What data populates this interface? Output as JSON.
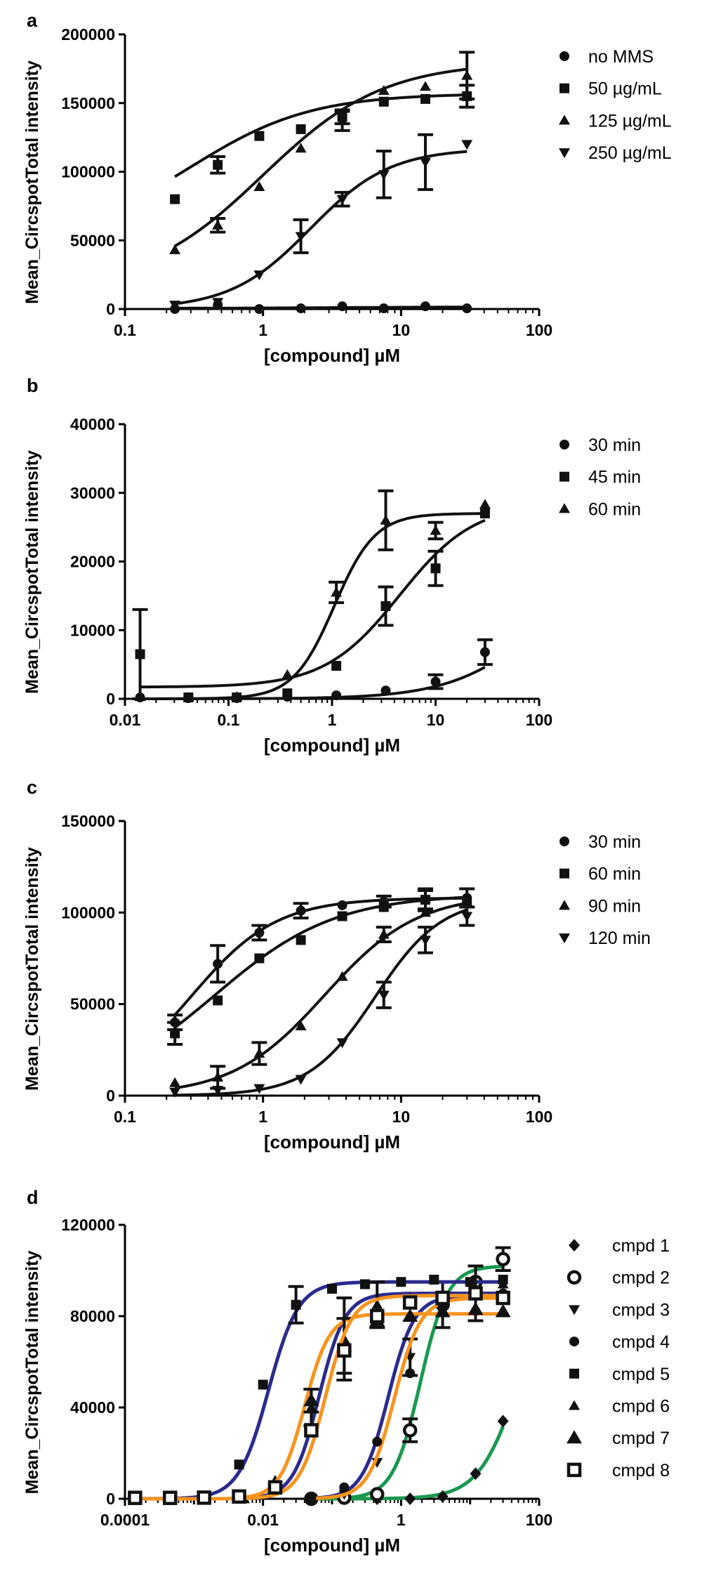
{
  "chart_data": [
    {
      "panel": "a",
      "type": "scatter",
      "xscale": "log",
      "xlabel": "[compound] µM",
      "ylabel": "Mean_CircspotTotal intensity",
      "xlim": [
        0.1,
        100
      ],
      "ylim": [
        0,
        200000
      ],
      "xticks": [
        "0.1",
        "1",
        "10",
        "100"
      ],
      "yticks": [
        "0",
        "50000",
        "100000",
        "150000",
        "200000"
      ],
      "legend_position": "top-right",
      "series": [
        {
          "name": "no MMS",
          "marker": "circle",
          "color": "#111111",
          "x": [
            0.23,
            0.47,
            0.94,
            1.88,
            3.75,
            7.5,
            15,
            30
          ],
          "y": [
            0,
            3000,
            0,
            500,
            2000,
            500,
            2000,
            500
          ],
          "err": [
            0,
            0,
            0,
            0,
            0,
            0,
            0,
            0
          ],
          "fit": {
            "bottom": 500,
            "top": 1500,
            "ec50": 3,
            "hill": 1
          }
        },
        {
          "name": "50 µg/mL",
          "marker": "square",
          "color": "#111111",
          "x": [
            0.23,
            0.47,
            0.94,
            1.88,
            3.75,
            7.5,
            15,
            30
          ],
          "y": [
            80000,
            105000,
            126000,
            131000,
            140000,
            151000,
            153000,
            155000
          ],
          "err": [
            0,
            6000,
            0,
            0,
            5000,
            0,
            0,
            8000
          ],
          "fit": {
            "bottom": 50000,
            "top": 157000,
            "ec50": 0.3,
            "hill": 1
          }
        },
        {
          "name": "125 µg/mL",
          "marker": "triangle-up",
          "color": "#111111",
          "x": [
            0.23,
            0.47,
            0.94,
            1.88,
            3.75,
            7.5,
            15,
            30
          ],
          "y": [
            43000,
            61000,
            89000,
            117000,
            137000,
            159000,
            162000,
            170000
          ],
          "err": [
            0,
            5000,
            0,
            0,
            7000,
            0,
            0,
            17000
          ],
          "fit": {
            "bottom": 15000,
            "top": 180000,
            "ec50": 1.0,
            "hill": 1
          }
        },
        {
          "name": "250 µg/mL",
          "marker": "triangle-down",
          "color": "#111111",
          "x": [
            0.23,
            0.47,
            0.94,
            1.88,
            3.75,
            7.5,
            15,
            30
          ],
          "y": [
            3000,
            5000,
            25000,
            53000,
            80000,
            98000,
            107000,
            120000
          ],
          "err": [
            0,
            0,
            0,
            12000,
            5000,
            17000,
            20000,
            0
          ],
          "fit": {
            "bottom": 0,
            "top": 117000,
            "ec50": 2.2,
            "hill": 1.5
          }
        }
      ]
    },
    {
      "panel": "b",
      "type": "scatter",
      "xscale": "log",
      "xlabel": "[compound] µM",
      "ylabel": "Mean_CircspotTotal intensity",
      "xlim": [
        0.01,
        100
      ],
      "ylim": [
        0,
        40000
      ],
      "xticks": [
        "0.01",
        "0.1",
        "1",
        "10",
        "100"
      ],
      "yticks": [
        "0",
        "10000",
        "20000",
        "30000",
        "40000"
      ],
      "legend_position": "top-right",
      "series": [
        {
          "name": "30 min",
          "marker": "circle",
          "color": "#111111",
          "x": [
            0.014,
            0.041,
            0.12,
            0.37,
            1.1,
            3.3,
            10,
            30
          ],
          "y": [
            200,
            100,
            100,
            300,
            500,
            1200,
            2500,
            6800
          ],
          "err": [
            0,
            0,
            0,
            0,
            0,
            0,
            1000,
            1800
          ],
          "fit": {
            "bottom": 0,
            "top": 20000,
            "ec50": 100,
            "hill": 1
          }
        },
        {
          "name": "45 min",
          "marker": "square",
          "color": "#111111",
          "x": [
            0.014,
            0.041,
            0.12,
            0.37,
            1.1,
            3.3,
            10,
            30
          ],
          "y": [
            6500,
            200,
            200,
            800,
            4800,
            13500,
            19000,
            27000
          ],
          "err": [
            6500,
            0,
            0,
            0,
            0,
            2800,
            2500,
            0
          ],
          "fit": {
            "bottom": 1700,
            "top": 28500,
            "ec50": 4.5,
            "hill": 1.2
          }
        },
        {
          "name": "60 min",
          "marker": "triangle-up",
          "color": "#111111",
          "x": [
            0.014,
            0.041,
            0.12,
            0.37,
            1.1,
            3.3,
            10,
            30
          ],
          "y": [
            300,
            200,
            300,
            3500,
            15500,
            26000,
            24500,
            28300
          ],
          "err": [
            0,
            0,
            0,
            0,
            1500,
            4300,
            1200,
            0
          ],
          "fit": {
            "bottom": 0,
            "top": 27000,
            "ec50": 1.05,
            "hill": 2.2
          }
        }
      ]
    },
    {
      "panel": "c",
      "type": "scatter",
      "xscale": "log",
      "xlabel": "[compound] µM",
      "ylabel": "Mean_CircspotTotal intensity",
      "xlim": [
        0.1,
        100
      ],
      "ylim": [
        0,
        150000
      ],
      "xticks": [
        "0.1",
        "1",
        "10",
        "100"
      ],
      "yticks": [
        "0",
        "50000",
        "100000",
        "150000"
      ],
      "legend_position": "top-right",
      "series": [
        {
          "name": "30 min",
          "marker": "circle",
          "color": "#111111",
          "x": [
            0.23,
            0.47,
            0.94,
            1.88,
            3.75,
            7.5,
            15,
            30
          ],
          "y": [
            40000,
            72000,
            89000,
            101000,
            104000,
            106000,
            107000,
            108000
          ],
          "err": [
            4000,
            10000,
            4000,
            4000,
            0,
            3000,
            5000,
            5000
          ],
          "fit": {
            "bottom": 0,
            "top": 108000,
            "ec50": 0.3,
            "hill": 1.4
          }
        },
        {
          "name": "60 min",
          "marker": "square",
          "color": "#111111",
          "x": [
            0.23,
            0.47,
            0.94,
            1.88,
            3.75,
            7.5,
            15,
            30
          ],
          "y": [
            34000,
            52000,
            75000,
            85000,
            98000,
            103000,
            107000,
            106000
          ],
          "err": [
            6000,
            0,
            0,
            0,
            0,
            0,
            6000,
            0
          ],
          "fit": {
            "bottom": 0,
            "top": 110000,
            "ec50": 0.45,
            "hill": 1
          }
        },
        {
          "name": "90 min",
          "marker": "triangle-up",
          "color": "#111111",
          "x": [
            0.23,
            0.47,
            0.94,
            1.88,
            3.75,
            7.5,
            15,
            30
          ],
          "y": [
            7000,
            10000,
            23000,
            38000,
            65000,
            88000,
            100000,
            106000
          ],
          "err": [
            0,
            6000,
            6000,
            0,
            0,
            4000,
            0,
            0
          ],
          "fit": {
            "bottom": 0,
            "top": 110000,
            "ec50": 2.8,
            "hill": 1.3
          }
        },
        {
          "name": "120 min",
          "marker": "triangle-down",
          "color": "#111111",
          "x": [
            0.23,
            0.47,
            0.94,
            1.88,
            3.75,
            7.5,
            15,
            30
          ],
          "y": [
            2000,
            3000,
            4000,
            9000,
            29000,
            55000,
            85000,
            98000
          ],
          "err": [
            0,
            0,
            0,
            0,
            0,
            7000,
            7000,
            5000
          ],
          "fit": {
            "bottom": 0,
            "top": 108000,
            "ec50": 6.5,
            "hill": 1.8
          }
        }
      ]
    },
    {
      "panel": "d",
      "type": "scatter",
      "xscale": "log",
      "xlabel": "[compound] µM",
      "ylabel": "Mean_CircspotTotal intensity",
      "xlim": [
        0.0001,
        100
      ],
      "ylim": [
        0,
        120000
      ],
      "xticks": [
        "0.0001",
        "0.01",
        "1",
        "100"
      ],
      "yticks": [
        "0",
        "40000",
        "80000",
        "120000"
      ],
      "legend_position": "top-right",
      "series": [
        {
          "name": "cmpd 1",
          "marker": "diamond",
          "color": "#111111",
          "fit_color": "#1a9850",
          "x": [
            0.05,
            0.15,
            0.45,
            1.35,
            4,
            12,
            30
          ],
          "y": [
            0,
            0,
            0,
            0,
            1000,
            11000,
            34000
          ],
          "err": [
            0,
            0,
            0,
            0,
            0,
            0,
            0
          ],
          "fit": {
            "bottom": 0,
            "top": 100000,
            "ec50": 50,
            "hill": 1.5
          }
        },
        {
          "name": "cmpd 2",
          "marker": "circle-open",
          "color": "#111111",
          "fit_color": "#1a9850",
          "x": [
            0.05,
            0.15,
            0.45,
            1.35,
            4,
            12,
            30
          ],
          "y": [
            0,
            500,
            2000,
            30000,
            85000,
            95000,
            105000
          ],
          "err": [
            0,
            0,
            0,
            5000,
            10000,
            0,
            5000
          ],
          "fit": {
            "bottom": 0,
            "top": 102000,
            "ec50": 1.9,
            "hill": 2.2
          }
        },
        {
          "name": "cmpd 3",
          "marker": "triangle-down",
          "color": "#111111",
          "fit_color": "#2b2b8f",
          "x": [
            0.05,
            0.15,
            0.45,
            1.35,
            4,
            12,
            30
          ],
          "y": [
            200,
            2000,
            16000,
            62000,
            85000,
            90000,
            88000
          ],
          "err": [
            0,
            0,
            0,
            8000,
            0,
            0,
            0
          ],
          "fit": {
            "bottom": 0,
            "top": 89000,
            "ec50": 0.65,
            "hill": 2.3
          }
        },
        {
          "name": "cmpd 4",
          "marker": "circle",
          "color": "#111111",
          "fit_color": "#f7941d",
          "x": [
            0.05,
            0.15,
            0.45,
            1.35,
            4,
            12,
            30
          ],
          "y": [
            300,
            5000,
            25000,
            55000,
            85000,
            90000,
            90000
          ],
          "err": [
            0,
            0,
            0,
            0,
            0,
            0,
            0
          ],
          "fit": {
            "bottom": 0,
            "top": 88000,
            "ec50": 0.8,
            "hill": 2.3
          }
        },
        {
          "name": "cmpd 5",
          "marker": "square",
          "color": "#111111",
          "fit_color": "#2b2b8f",
          "x": [
            0.00014,
            0.00045,
            0.0014,
            0.0045,
            0.01,
            0.03,
            0.1,
            0.3,
            1,
            3,
            10,
            30
          ],
          "y": [
            300,
            300,
            500,
            15000,
            50000,
            85000,
            92000,
            94000,
            95000,
            96000,
            95000,
            96000
          ],
          "err": [
            0,
            0,
            0,
            0,
            0,
            8000,
            0,
            0,
            0,
            0,
            0,
            0
          ],
          "fit": {
            "bottom": 0,
            "top": 95000,
            "ec50": 0.012,
            "hill": 2.0
          }
        },
        {
          "name": "cmpd 6",
          "marker": "triangle-up",
          "color": "#111111",
          "fit_color": "#2b2b8f",
          "x": [
            0.005,
            0.015,
            0.05,
            0.15,
            0.45,
            1.35,
            4,
            12,
            30
          ],
          "y": [
            1000,
            8000,
            40000,
            70000,
            85000,
            88000,
            90000,
            92000,
            94000
          ],
          "err": [
            0,
            0,
            8000,
            18000,
            10000,
            0,
            0,
            0,
            0
          ],
          "fit": {
            "bottom": 0,
            "top": 90000,
            "ec50": 0.065,
            "hill": 2.3
          }
        },
        {
          "name": "cmpd 7",
          "marker": "triangle-up-large",
          "color": "#111111",
          "fit_color": "#f7941d",
          "x": [
            0.005,
            0.015,
            0.05,
            0.15,
            0.45,
            1.35,
            4,
            12,
            30
          ],
          "y": [
            500,
            5000,
            43000,
            67000,
            78000,
            80000,
            82000,
            83000,
            82000
          ],
          "err": [
            0,
            0,
            5000,
            12000,
            0,
            0,
            0,
            0,
            0
          ],
          "fit": {
            "bottom": 0,
            "top": 81000,
            "ec50": 0.04,
            "hill": 2.4
          }
        },
        {
          "name": "cmpd 8",
          "marker": "square-open",
          "color": "#111111",
          "fit_color": "#f7941d",
          "x": [
            0.00014,
            0.00045,
            0.0014,
            0.0045,
            0.015,
            0.05,
            0.15,
            0.45,
            1.35,
            4,
            12,
            30
          ],
          "y": [
            400,
            400,
            500,
            1000,
            5000,
            30000,
            65000,
            80000,
            86000,
            88000,
            90000,
            88000
          ],
          "err": [
            0,
            0,
            0,
            0,
            0,
            0,
            0,
            0,
            0,
            0,
            12000,
            0
          ],
          "fit": {
            "bottom": 0,
            "top": 89000,
            "ec50": 0.08,
            "hill": 2.3
          }
        }
      ]
    }
  ]
}
